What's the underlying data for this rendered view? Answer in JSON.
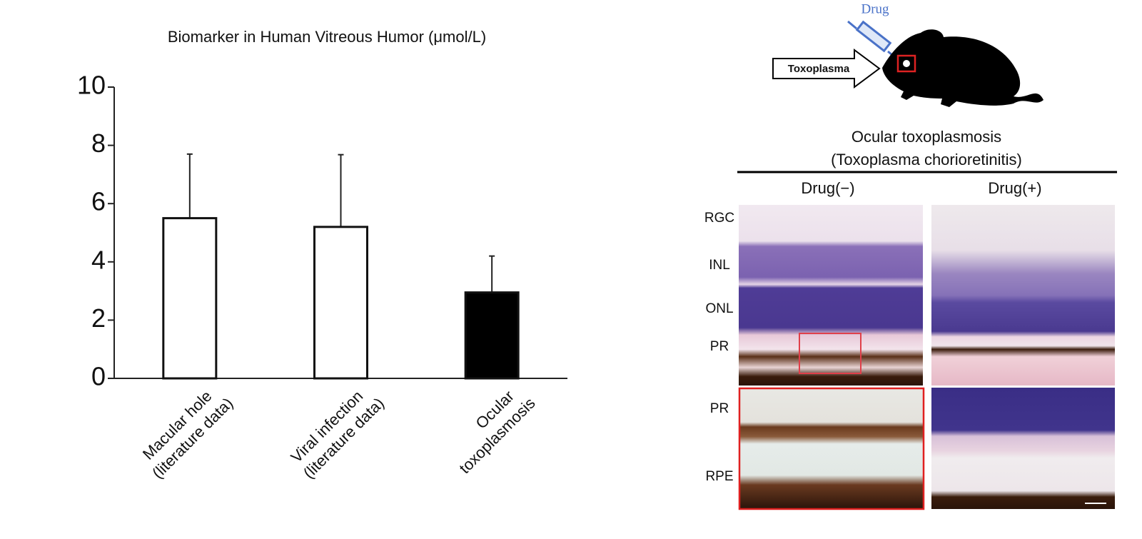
{
  "chart_data": {
    "type": "bar",
    "title": "Biomarker in Human Vitreous Humor (μmol/L)",
    "categories": [
      [
        "Macular hole",
        "(literature data)"
      ],
      [
        "Viral infection",
        "(literature data)"
      ],
      [
        "Ocular",
        "toxoplasmosis"
      ]
    ],
    "series": [
      {
        "values": [
          5.5,
          5.2,
          2.95
        ],
        "errors": [
          2.2,
          2.48,
          1.25
        ],
        "colors": [
          "#ffffff",
          "#ffffff",
          "#000000"
        ],
        "edgecolor": "#111111"
      }
    ],
    "ylim": [
      0,
      10
    ],
    "yticks": [
      0,
      2,
      4,
      6,
      8,
      10
    ]
  },
  "diagram": {
    "drug": "Drug",
    "infection": "Toxoplasma",
    "panel_title": [
      "Ocular toxoplasmosis",
      "(Toxoplasma chorioretinitis)"
    ],
    "columns": [
      "Drug(−)",
      "Drug(+)"
    ],
    "rows_upper": [
      "RGC",
      "INL",
      "ONL",
      "PR"
    ],
    "rows_lower": [
      "PR",
      "RPE"
    ]
  }
}
